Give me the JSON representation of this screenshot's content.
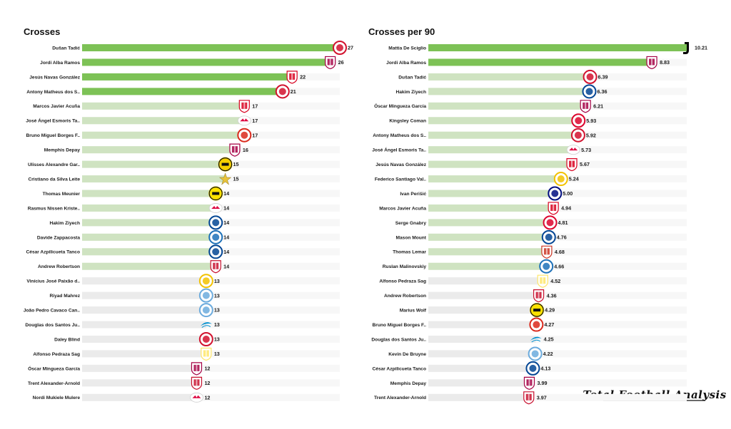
{
  "brand": "Total Football Analysis",
  "colors": {
    "bar_top": "#7dc256",
    "bar_mid": "#cfe3c1",
    "bar_low": "#ebebeb",
    "text": "#1a1a1a"
  },
  "chart_data": [
    {
      "type": "bar",
      "orientation": "horizontal",
      "title": "Crosses",
      "categories": [
        "Dušan Tadić",
        "Jordi Alba Ramos",
        "Jesús Navas González",
        "Antony Matheus dos S..",
        "Marcos Javier Acuña",
        "José Ángel Esmoris Ta..",
        "Bruno Miguel Borges F..",
        "Memphis Depay",
        "Ulisses Alexandre Gar..",
        "Cristiano da Silva Leite",
        "Thomas Meunier",
        "Rasmus Nissen Kriste..",
        "Hakim Ziyech",
        "Davide Zappacosta",
        "César Azpilicueta Tanco",
        "Andrew Robertson",
        "Vinícius José Paixão d..",
        "Riyad Mahrez",
        "João Pedro Cavaco Can..",
        "Douglas dos Santos Ju..",
        "Daley Blind",
        "Alfonso Pedraza Sag",
        "Óscar Mingueza García",
        "Trent Alexander-Arnold",
        "Nordi Mukiele Mulere"
      ],
      "values": [
        27,
        26,
        22,
        21,
        17,
        17,
        17,
        16,
        15,
        15,
        14,
        14,
        14,
        14,
        14,
        14,
        13,
        13,
        13,
        13,
        13,
        13,
        12,
        12,
        12
      ],
      "value_labels": [
        "27",
        "26",
        "22",
        "21",
        "17",
        "17",
        "17",
        "16",
        "15",
        "15",
        "14",
        "14",
        "14",
        "14",
        "14",
        "14",
        "13",
        "13",
        "13",
        "13",
        "13",
        "13",
        "12",
        "12",
        "12"
      ],
      "clubs": [
        "ajax",
        "barcelona",
        "sevilla",
        "ajax",
        "sevilla",
        "leipzig",
        "manutd",
        "barcelona",
        "youngboys",
        "sheriff",
        "dortmund",
        "leipzig",
        "chelsea",
        "atalanta",
        "chelsea",
        "liverpool",
        "realmadrid",
        "mancity",
        "mancity",
        "zenit",
        "ajax",
        "villarreal",
        "barcelona",
        "liverpool",
        "leipzig"
      ],
      "xlim": [
        0,
        27
      ],
      "grid": false,
      "legend": false
    },
    {
      "type": "bar",
      "orientation": "horizontal",
      "title": "Crosses per 90",
      "categories": [
        "Mattia De Sciglio",
        "Jordi Alba Ramos",
        "Dušan Tadić",
        "Hakim Ziyech",
        "Óscar Mingueza García",
        "Kingsley Coman",
        "Antony Matheus dos S..",
        "José Ángel Esmoris Ta..",
        "Jesús Navas González",
        "Federico Santiago Val..",
        "Ivan Perišić",
        "Marcos Javier Acuña",
        "Serge Gnabry",
        "Mason Mount",
        "Thomas Lemar",
        "Ruslan Malinovskiy",
        "Alfonso Pedraza Sag",
        "Andrew Robertson",
        "Marius Wolf",
        "Bruno Miguel Borges F..",
        "Douglas dos Santos Ju..",
        "Kevin De Bruyne",
        "César Azpilicueta Tanco",
        "Memphis Depay",
        "Trent Alexander-Arnold"
      ],
      "values": [
        10.21,
        8.83,
        6.39,
        6.36,
        6.21,
        5.93,
        5.92,
        5.73,
        5.67,
        5.24,
        5.0,
        4.94,
        4.81,
        4.76,
        4.68,
        4.66,
        4.52,
        4.36,
        4.29,
        4.27,
        4.25,
        4.22,
        4.13,
        3.99,
        3.97
      ],
      "value_labels": [
        "10.21",
        "8.83",
        "6.39",
        "6.36",
        "6.21",
        "5.93",
        "5.92",
        "5.73",
        "5.67",
        "5.24",
        "5.00",
        "4.94",
        "4.81",
        "4.76",
        "4.68",
        "4.66",
        "4.52",
        "4.36",
        "4.29",
        "4.27",
        "4.25",
        "4.22",
        "4.13",
        "3.99",
        "3.97"
      ],
      "clubs": [
        "juventus",
        "barcelona",
        "ajax",
        "chelsea",
        "barcelona",
        "bayern",
        "ajax",
        "leipzig",
        "sevilla",
        "realmadrid",
        "inter",
        "sevilla",
        "bayern",
        "chelsea",
        "atletico",
        "atalanta",
        "villarreal",
        "liverpool",
        "dortmund",
        "manutd",
        "zenit",
        "mancity",
        "chelsea",
        "barcelona",
        "liverpool"
      ],
      "xlim": [
        0,
        10.21
      ],
      "grid": false,
      "legend": false
    }
  ],
  "club_colors": {
    "ajax": "#d2122e",
    "barcelona": "#a50044",
    "sevilla": "#d8001f",
    "leipzig": "#dd0741",
    "manutd": "#da291c",
    "youngboys": "#f5d000",
    "sheriff": "#e8c33a",
    "dortmund": "#fde100",
    "chelsea": "#034694",
    "atalanta": "#1e71b8",
    "liverpool": "#c8102e",
    "realmadrid": "#f2c200",
    "mancity": "#6cabdd",
    "zenit": "#0090d0",
    "villarreal": "#ffe667",
    "juventus": "#000000",
    "bayern": "#dc052d",
    "inter": "#010e80",
    "atletico": "#cb3524"
  }
}
